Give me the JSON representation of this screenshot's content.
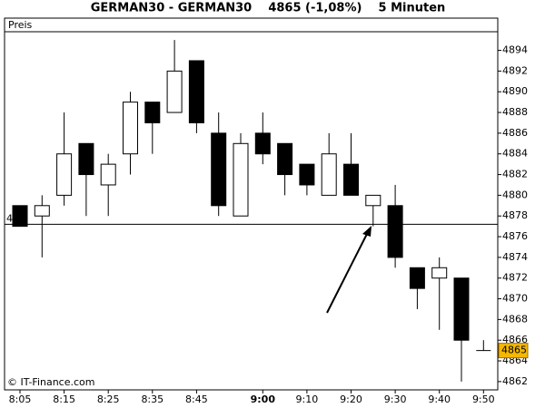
{
  "chart_data": {
    "type": "candlestick",
    "title": "GERMAN30 - GERMAN30    4865 (-1,08%)    5 Minuten",
    "y_label": "Preis",
    "source": "© IT-Finance.com",
    "categories": [
      "8:05",
      null,
      "8:15",
      null,
      "8:25",
      null,
      "8:35",
      null,
      "8:45",
      null,
      null,
      "9:00",
      null,
      "9:10",
      null,
      "9:20",
      null,
      "9:30",
      null,
      "9:40",
      null,
      "9:50"
    ],
    "open": [
      4879,
      4878,
      4880,
      4885,
      4881,
      4884,
      4889,
      4888,
      4893,
      4886,
      4878,
      4886,
      4885,
      4883,
      4880,
      4883,
      4879,
      4879,
      4873,
      4872,
      4872,
      4865
    ],
    "high": [
      4879,
      4880,
      4888,
      4885,
      4884,
      4890,
      4889,
      4895,
      4893,
      4888,
      4886,
      4888,
      4885,
      4883,
      4886,
      4886,
      4880,
      4881,
      4873,
      4874,
      4872,
      4866
    ],
    "low": [
      4877,
      4874,
      4879,
      4878,
      4878,
      4882,
      4884,
      4888,
      4886,
      4878,
      4878,
      4883,
      4880,
      4880,
      4880,
      4880,
      4877,
      4873,
      4869,
      4867,
      4862,
      4865
    ],
    "close": [
      4877,
      4879,
      4884,
      4882,
      4883,
      4889,
      4887,
      4892,
      4887,
      4879,
      4885,
      4884,
      4882,
      4881,
      4884,
      4880,
      4880,
      4874,
      4871,
      4873,
      4866,
      4865
    ],
    "ylim": [
      4861.2,
      4895.8
    ],
    "yticks": [
      4862,
      4864,
      4866,
      4868,
      4870,
      4872,
      4874,
      4876,
      4878,
      4880,
      4882,
      4884,
      4886,
      4888,
      4890,
      4892,
      4894
    ],
    "hline": {
      "value": 4877.2,
      "label": "4"
    },
    "last_price": 4865,
    "last_price_color": "#f5b800"
  }
}
